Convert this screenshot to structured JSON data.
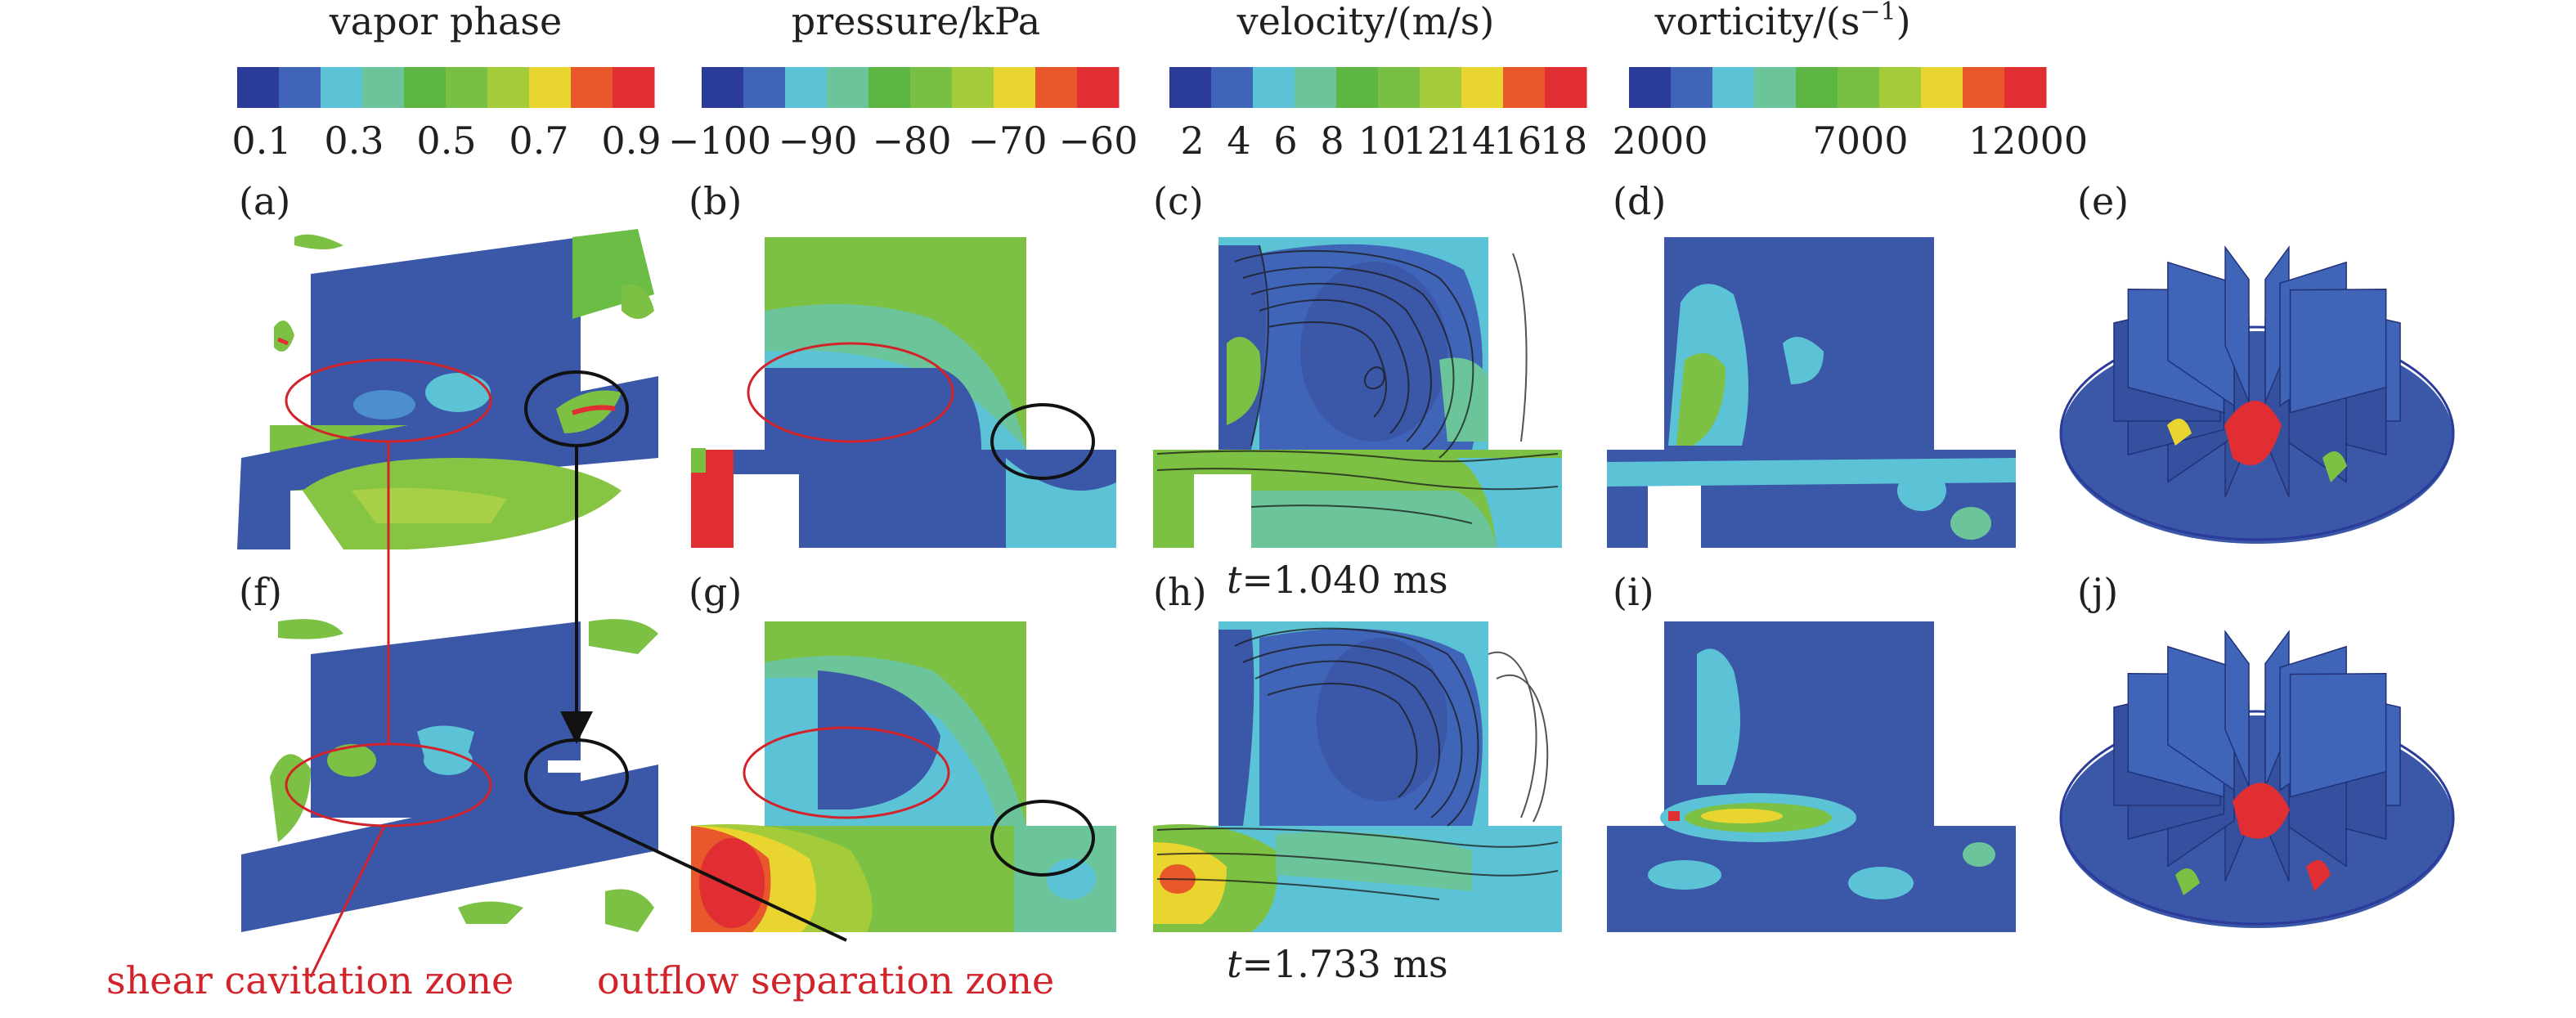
{
  "colorbars": [
    {
      "title": "vapor phase",
      "ticks": [
        "0.1",
        "0.3",
        "0.5",
        "0.7",
        "0.9"
      ]
    },
    {
      "title": "pressure/kPa",
      "ticks": [
        "−100",
        "−90",
        "−80",
        "−70",
        "−60"
      ]
    },
    {
      "title": "velocity/(m/s)",
      "ticks": [
        "2",
        "4",
        "6",
        "8",
        "10",
        "12",
        "14",
        "16",
        "18"
      ]
    },
    {
      "title_main": "vorticity/(s",
      "title_sup": "−1",
      "title_close": ")",
      "ticks": [
        "2000",
        "7000",
        "12000"
      ]
    }
  ],
  "palette": [
    "#2b3b9a",
    "#3f64b8",
    "#5cc2d6",
    "#6cc49a",
    "#5db544",
    "#77c043",
    "#a4cc3a",
    "#e8d52f",
    "#e8582a",
    "#e02e32"
  ],
  "panel_labels": [
    "(a)",
    "(b)",
    "(c)",
    "(d)",
    "(e)",
    "(f)",
    "(g)",
    "(h)",
    "(i)",
    "(j)"
  ],
  "times": {
    "row1": "=1.040 ms",
    "row2": "=1.733 ms",
    "var": "t"
  },
  "annotations": {
    "shear": "shear cavitation zone",
    "outflow": "outflow separation zone"
  },
  "colors": {
    "field_blue": "#3a57a8",
    "cavity_green": "#7cc143",
    "annotation_red": "#d2232a",
    "annotation_black": "#111111"
  }
}
